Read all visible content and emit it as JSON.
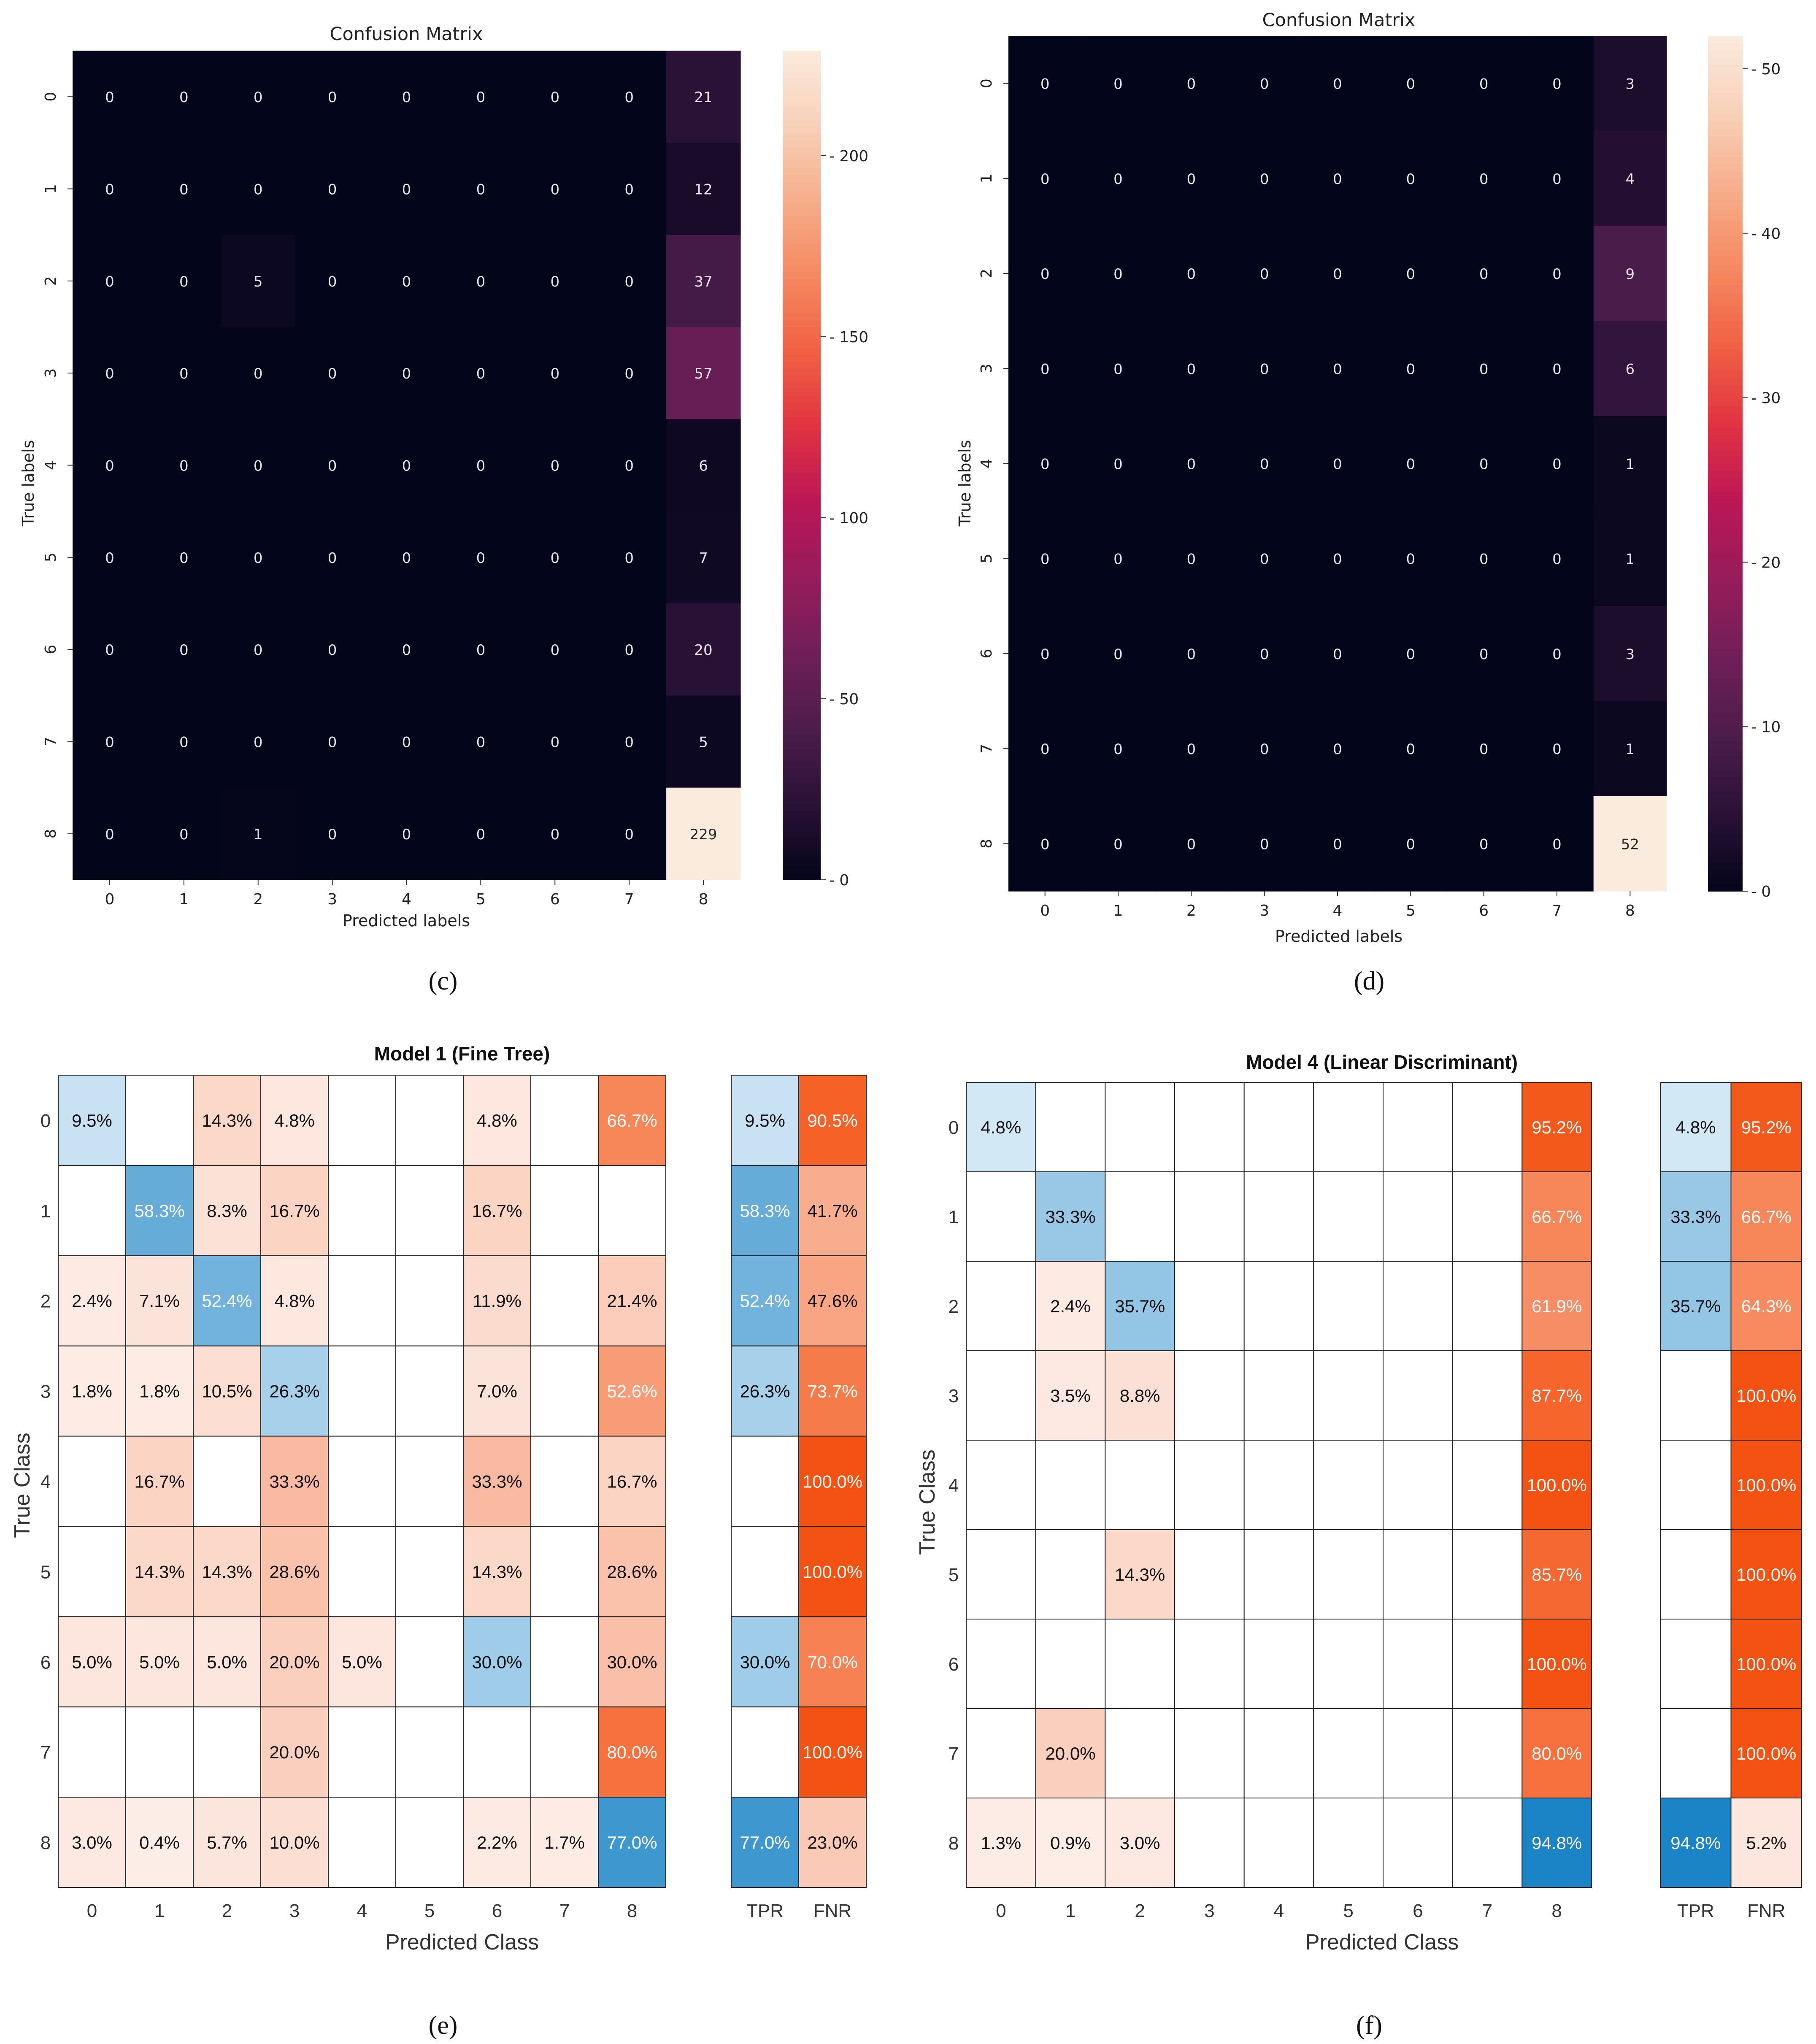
{
  "chart_data": [
    {
      "id": "c",
      "type": "heatmap",
      "style": "seaborn",
      "title": "Confusion Matrix",
      "xlabel": "Predicted labels",
      "ylabel": "True labels",
      "row_labels": [
        "0",
        "1",
        "2",
        "3",
        "4",
        "5",
        "6",
        "7",
        "8"
      ],
      "col_labels": [
        "0",
        "1",
        "2",
        "3",
        "4",
        "5",
        "6",
        "7",
        "8"
      ],
      "matrix": [
        [
          0,
          0,
          0,
          0,
          0,
          0,
          0,
          0,
          21
        ],
        [
          0,
          0,
          0,
          0,
          0,
          0,
          0,
          0,
          12
        ],
        [
          0,
          0,
          5,
          0,
          0,
          0,
          0,
          0,
          37
        ],
        [
          0,
          0,
          0,
          0,
          0,
          0,
          0,
          0,
          57
        ],
        [
          0,
          0,
          0,
          0,
          0,
          0,
          0,
          0,
          6
        ],
        [
          0,
          0,
          0,
          0,
          0,
          0,
          0,
          0,
          7
        ],
        [
          0,
          0,
          0,
          0,
          0,
          0,
          0,
          0,
          20
        ],
        [
          0,
          0,
          0,
          0,
          0,
          0,
          0,
          0,
          5
        ],
        [
          0,
          0,
          1,
          0,
          0,
          0,
          0,
          0,
          229
        ]
      ],
      "vmin": 0,
      "vmax": 229,
      "colorbar_ticks": [
        0,
        50,
        100,
        150,
        200
      ],
      "caption": "(c)"
    },
    {
      "id": "d",
      "type": "heatmap",
      "style": "seaborn",
      "title": "Confusion Matrix",
      "xlabel": "Predicted labels",
      "ylabel": "True labels",
      "row_labels": [
        "0",
        "1",
        "2",
        "3",
        "4",
        "5",
        "6",
        "7",
        "8"
      ],
      "col_labels": [
        "0",
        "1",
        "2",
        "3",
        "4",
        "5",
        "6",
        "7",
        "8"
      ],
      "matrix": [
        [
          0,
          0,
          0,
          0,
          0,
          0,
          0,
          0,
          3
        ],
        [
          0,
          0,
          0,
          0,
          0,
          0,
          0,
          0,
          4
        ],
        [
          0,
          0,
          0,
          0,
          0,
          0,
          0,
          0,
          9
        ],
        [
          0,
          0,
          0,
          0,
          0,
          0,
          0,
          0,
          6
        ],
        [
          0,
          0,
          0,
          0,
          0,
          0,
          0,
          0,
          1
        ],
        [
          0,
          0,
          0,
          0,
          0,
          0,
          0,
          0,
          1
        ],
        [
          0,
          0,
          0,
          0,
          0,
          0,
          0,
          0,
          3
        ],
        [
          0,
          0,
          0,
          0,
          0,
          0,
          0,
          0,
          1
        ],
        [
          0,
          0,
          0,
          0,
          0,
          0,
          0,
          0,
          52
        ]
      ],
      "vmin": 0,
      "vmax": 52,
      "colorbar_ticks": [
        0,
        10,
        20,
        30,
        40,
        50
      ],
      "caption": "(d)"
    },
    {
      "id": "e",
      "type": "heatmap",
      "style": "matlab",
      "title": "Model 1 (Fine Tree)",
      "xlabel": "Predicted Class",
      "ylabel": "True Class",
      "row_labels": [
        "0",
        "1",
        "2",
        "3",
        "4",
        "5",
        "6",
        "7",
        "8"
      ],
      "col_labels": [
        "0",
        "1",
        "2",
        "3",
        "4",
        "5",
        "6",
        "7",
        "8"
      ],
      "matrix": [
        [
          9.5,
          null,
          14.3,
          4.8,
          null,
          null,
          4.8,
          null,
          66.7
        ],
        [
          null,
          58.3,
          8.3,
          16.7,
          null,
          null,
          16.7,
          null,
          null
        ],
        [
          2.4,
          7.1,
          52.4,
          4.8,
          null,
          null,
          11.9,
          null,
          21.4
        ],
        [
          1.8,
          1.8,
          10.5,
          26.3,
          null,
          null,
          7.0,
          null,
          52.6
        ],
        [
          null,
          16.7,
          null,
          33.3,
          null,
          null,
          33.3,
          null,
          16.7
        ],
        [
          null,
          14.3,
          14.3,
          28.6,
          null,
          null,
          14.3,
          null,
          28.6
        ],
        [
          5.0,
          5.0,
          5.0,
          20.0,
          5.0,
          null,
          30.0,
          null,
          30.0
        ],
        [
          null,
          null,
          null,
          20.0,
          null,
          null,
          null,
          null,
          80.0
        ],
        [
          3.0,
          0.4,
          5.7,
          10.0,
          null,
          null,
          2.2,
          1.7,
          77.0
        ]
      ],
      "side_labels": [
        "TPR",
        "FNR"
      ],
      "tpr": [
        9.5,
        58.3,
        52.4,
        26.3,
        null,
        null,
        30.0,
        null,
        77.0
      ],
      "fnr": [
        90.5,
        41.7,
        47.6,
        73.7,
        100.0,
        100.0,
        70.0,
        100.0,
        23.0
      ],
      "caption": "(e)"
    },
    {
      "id": "f",
      "type": "heatmap",
      "style": "matlab",
      "title": "Model 4 (Linear Discriminant)",
      "xlabel": "Predicted Class",
      "ylabel": "True Class",
      "row_labels": [
        "0",
        "1",
        "2",
        "3",
        "4",
        "5",
        "6",
        "7",
        "8"
      ],
      "col_labels": [
        "0",
        "1",
        "2",
        "3",
        "4",
        "5",
        "6",
        "7",
        "8"
      ],
      "matrix": [
        [
          4.8,
          null,
          null,
          null,
          null,
          null,
          null,
          null,
          95.2
        ],
        [
          null,
          33.3,
          null,
          null,
          null,
          null,
          null,
          null,
          66.7
        ],
        [
          null,
          2.4,
          35.7,
          null,
          null,
          null,
          null,
          null,
          61.9
        ],
        [
          null,
          3.5,
          8.8,
          null,
          null,
          null,
          null,
          null,
          87.7
        ],
        [
          null,
          null,
          null,
          null,
          null,
          null,
          null,
          null,
          100.0
        ],
        [
          null,
          null,
          14.3,
          null,
          null,
          null,
          null,
          null,
          85.7
        ],
        [
          null,
          null,
          null,
          null,
          null,
          null,
          null,
          null,
          100.0
        ],
        [
          null,
          20.0,
          null,
          null,
          null,
          null,
          null,
          null,
          80.0
        ],
        [
          1.3,
          0.9,
          3.0,
          null,
          null,
          null,
          null,
          null,
          94.8
        ]
      ],
      "side_labels": [
        "TPR",
        "FNR"
      ],
      "tpr": [
        4.8,
        33.3,
        35.7,
        null,
        null,
        null,
        null,
        null,
        94.8
      ],
      "fnr": [
        95.2,
        66.7,
        64.3,
        100.0,
        100.0,
        100.0,
        100.0,
        100.0,
        5.2
      ],
      "caption": "(f)"
    }
  ]
}
